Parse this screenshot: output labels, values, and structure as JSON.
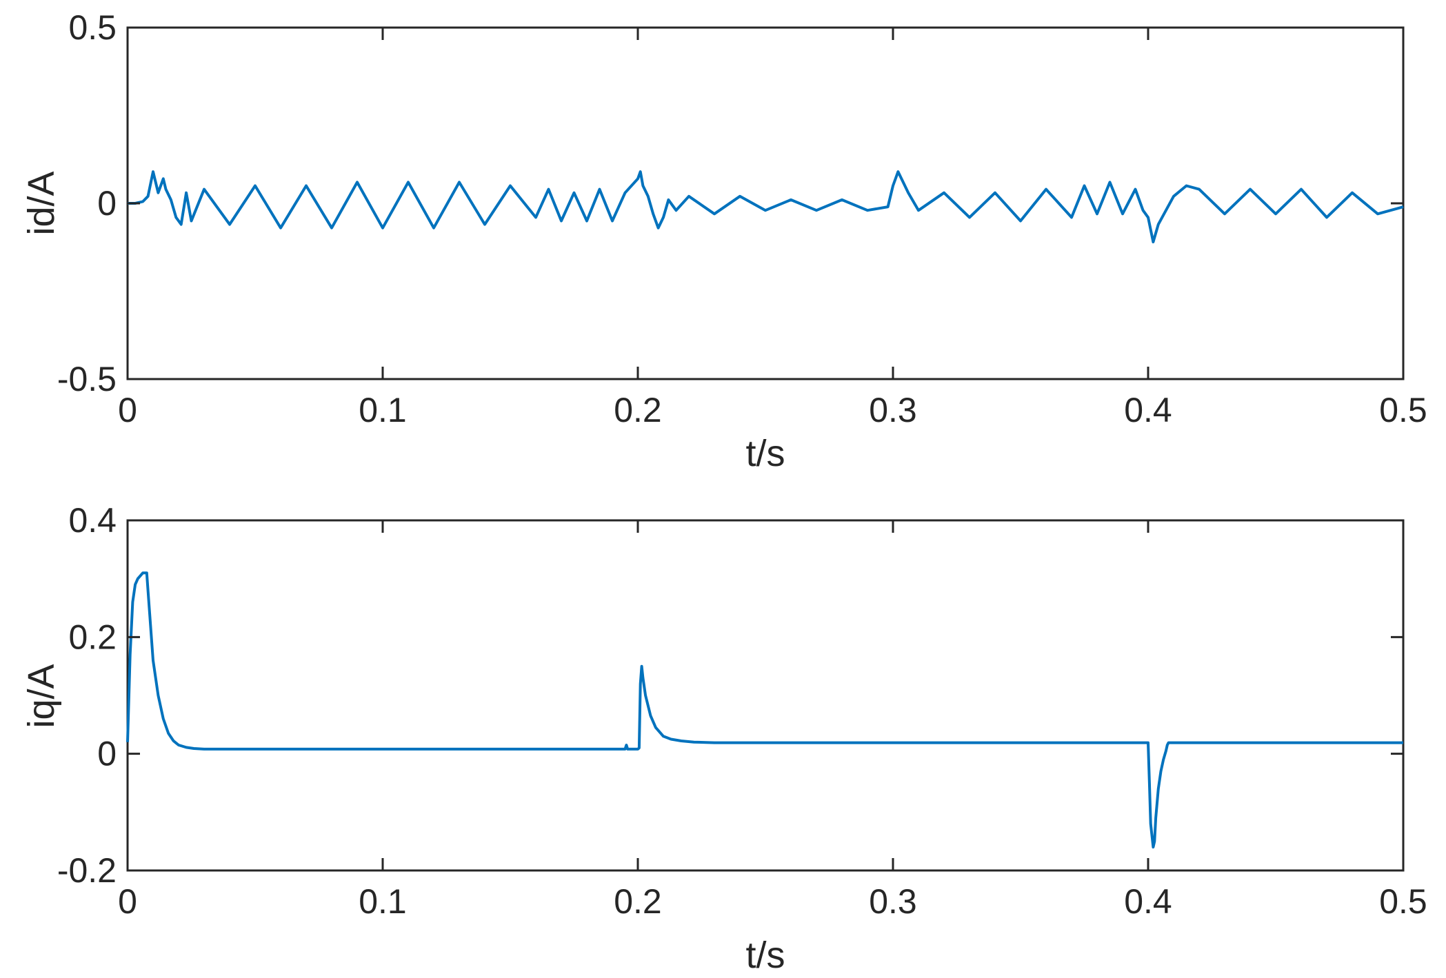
{
  "chart_data": [
    {
      "type": "line",
      "xlabel": "t/s",
      "ylabel": "id/A",
      "xlim": [
        0,
        0.5
      ],
      "ylim": [
        -0.5,
        0.5
      ],
      "xticks": [
        0,
        0.1,
        0.2,
        0.3,
        0.4,
        0.5
      ],
      "xtick_labels": [
        "0",
        "0.1",
        "0.2",
        "0.3",
        "0.4",
        "0.5"
      ],
      "yticks": [
        -0.5,
        0,
        0.5
      ],
      "ytick_labels": [
        "-0.5",
        "0",
        "0.5"
      ],
      "grid": false,
      "line_color": "#0072BD",
      "series": [
        {
          "x": [
            0,
            0.003,
            0.006,
            0.008,
            0.01,
            0.011,
            0.012,
            0.014,
            0.015,
            0.017,
            0.019,
            0.021,
            0.023,
            0.025,
            0.03,
            0.04,
            0.05,
            0.06,
            0.07,
            0.08,
            0.09,
            0.1,
            0.11,
            0.12,
            0.13,
            0.14,
            0.15,
            0.16,
            0.165,
            0.17,
            0.175,
            0.18,
            0.185,
            0.19,
            0.195,
            0.2,
            0.201,
            0.202,
            0.204,
            0.206,
            0.208,
            0.21,
            0.212,
            0.215,
            0.22,
            0.23,
            0.24,
            0.25,
            0.26,
            0.27,
            0.28,
            0.29,
            0.298,
            0.3,
            0.302,
            0.304,
            0.306,
            0.31,
            0.32,
            0.33,
            0.34,
            0.35,
            0.36,
            0.37,
            0.375,
            0.38,
            0.385,
            0.39,
            0.395,
            0.398,
            0.4,
            0.402,
            0.404,
            0.407,
            0.41,
            0.415,
            0.42,
            0.43,
            0.44,
            0.45,
            0.46,
            0.47,
            0.48,
            0.49,
            0.5
          ],
          "y": [
            0,
            0.0,
            0.005,
            0.02,
            0.09,
            0.06,
            0.03,
            0.07,
            0.04,
            0.01,
            -0.04,
            -0.06,
            0.03,
            -0.05,
            0.04,
            -0.06,
            0.05,
            -0.07,
            0.05,
            -0.07,
            0.06,
            -0.07,
            0.06,
            -0.07,
            0.06,
            -0.06,
            0.05,
            -0.04,
            0.04,
            -0.05,
            0.03,
            -0.05,
            0.04,
            -0.05,
            0.03,
            0.07,
            0.09,
            0.05,
            0.02,
            -0.03,
            -0.07,
            -0.04,
            0.01,
            -0.02,
            0.02,
            -0.03,
            0.02,
            -0.02,
            0.01,
            -0.02,
            0.01,
            -0.02,
            -0.01,
            0.05,
            0.09,
            0.06,
            0.03,
            -0.02,
            0.03,
            -0.04,
            0.03,
            -0.05,
            0.04,
            -0.04,
            0.05,
            -0.03,
            0.06,
            -0.03,
            0.04,
            -0.02,
            -0.04,
            -0.11,
            -0.06,
            -0.02,
            0.02,
            0.05,
            0.04,
            -0.03,
            0.04,
            -0.03,
            0.04,
            -0.04,
            0.03,
            -0.03,
            -0.01
          ]
        }
      ]
    },
    {
      "type": "line",
      "xlabel": "t/s",
      "ylabel": "iq/A",
      "xlim": [
        0,
        0.5
      ],
      "ylim": [
        -0.2,
        0.4
      ],
      "xticks": [
        0,
        0.1,
        0.2,
        0.3,
        0.4,
        0.5
      ],
      "xtick_labels": [
        "0",
        "0.1",
        "0.2",
        "0.3",
        "0.4",
        "0.5"
      ],
      "yticks": [
        -0.2,
        0,
        0.2,
        0.4
      ],
      "ytick_labels": [
        "-0.2",
        "0",
        "0.2",
        "0.4"
      ],
      "grid": false,
      "line_color": "#0072BD",
      "series": [
        {
          "x": [
            0,
            0.001,
            0.002,
            0.003,
            0.004,
            0.005,
            0.006,
            0.007,
            0.0075,
            0.008,
            0.009,
            0.01,
            0.012,
            0.014,
            0.016,
            0.018,
            0.02,
            0.023,
            0.026,
            0.03,
            0.05,
            0.1,
            0.15,
            0.195,
            0.1955,
            0.196,
            0.1965,
            0.197,
            0.199,
            0.2,
            0.2005,
            0.201,
            0.2015,
            0.202,
            0.203,
            0.205,
            0.207,
            0.21,
            0.213,
            0.217,
            0.222,
            0.23,
            0.3,
            0.35,
            0.39,
            0.4,
            0.4005,
            0.401,
            0.402,
            0.4025,
            0.403,
            0.404,
            0.405,
            0.406,
            0.407,
            0.4075,
            0.408,
            0.45,
            0.5
          ],
          "y": [
            0.02,
            0.17,
            0.26,
            0.29,
            0.3,
            0.305,
            0.31,
            0.31,
            0.31,
            0.28,
            0.22,
            0.16,
            0.1,
            0.06,
            0.035,
            0.022,
            0.015,
            0.011,
            0.009,
            0.008,
            0.008,
            0.008,
            0.008,
            0.008,
            0.015,
            0.008,
            0.008,
            0.008,
            0.008,
            0.008,
            0.01,
            0.12,
            0.15,
            0.13,
            0.1,
            0.065,
            0.045,
            0.03,
            0.025,
            0.022,
            0.02,
            0.019,
            0.019,
            0.019,
            0.019,
            0.019,
            -0.05,
            -0.12,
            -0.16,
            -0.15,
            -0.11,
            -0.06,
            -0.03,
            -0.01,
            0.005,
            0.015,
            0.019,
            0.019,
            0.019
          ]
        }
      ]
    }
  ]
}
